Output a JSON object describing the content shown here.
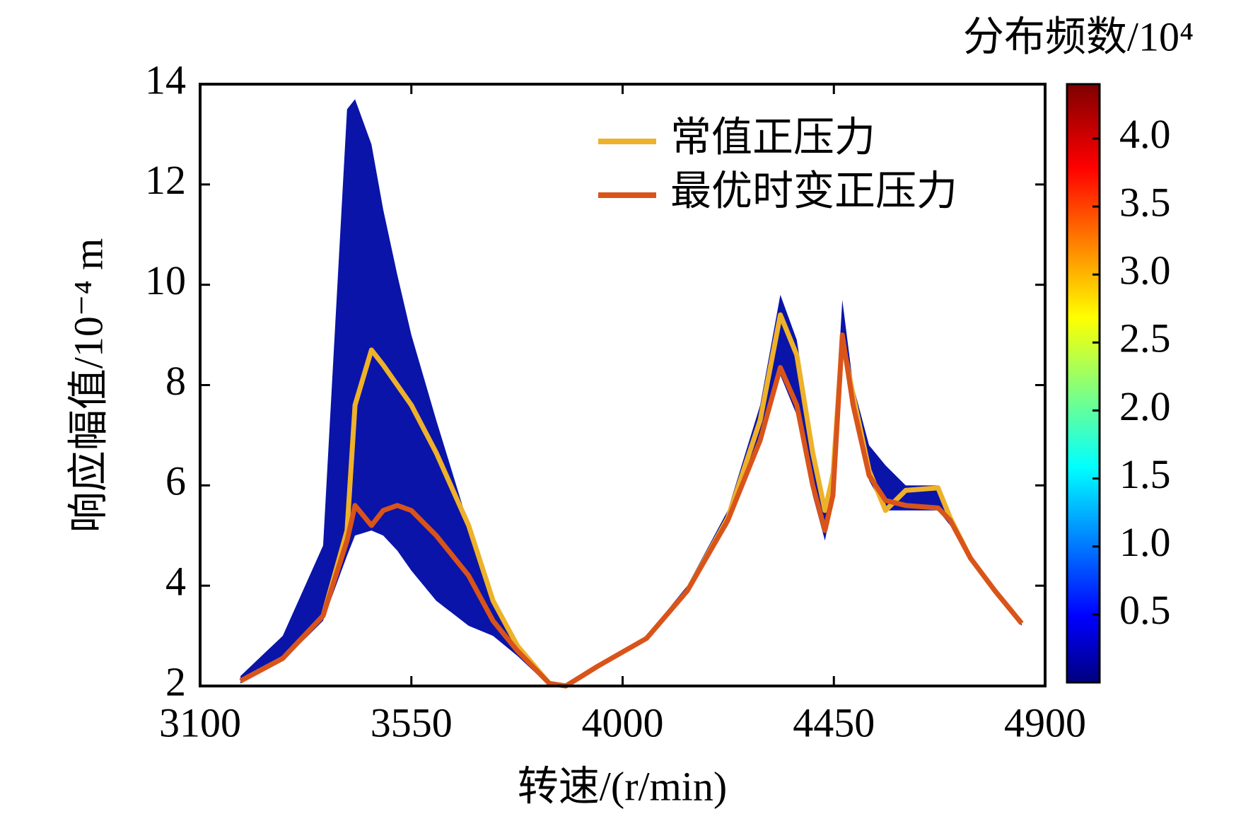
{
  "chart_data": {
    "type": "line",
    "xlabel": "转速/(r/min)",
    "ylabel": "响应幅值/10⁻⁴ m",
    "x": [
      3186,
      3276,
      3362,
      3413,
      3430,
      3465,
      3490,
      3520,
      3550,
      3603,
      3672,
      3724,
      3776,
      3844,
      3879,
      3948,
      4051,
      4138,
      4224,
      4293,
      4336,
      4371,
      4405,
      4431,
      4448,
      4468,
      4491,
      4525,
      4560,
      4603,
      4672,
      4698,
      4741,
      4793,
      4850
    ],
    "series": [
      {
        "name": "常值正压力",
        "color": "#eeb12a",
        "values": [
          2.1,
          2.55,
          3.4,
          5.1,
          7.6,
          8.7,
          8.4,
          8.0,
          7.6,
          6.65,
          5.2,
          3.7,
          2.8,
          2.05,
          2.0,
          2.4,
          2.95,
          3.9,
          5.35,
          7.3,
          9.4,
          8.6,
          6.65,
          5.5,
          6.2,
          8.9,
          7.8,
          6.3,
          5.5,
          5.9,
          5.95,
          5.35,
          4.55,
          3.9,
          3.25
        ]
      },
      {
        "name": "最优时变正压力",
        "color": "#d9541a",
        "values": [
          2.1,
          2.55,
          3.4,
          4.9,
          5.6,
          5.2,
          5.5,
          5.6,
          5.5,
          5.0,
          4.2,
          3.3,
          2.7,
          2.05,
          2.0,
          2.4,
          2.95,
          3.9,
          5.3,
          6.9,
          8.35,
          7.6,
          6.0,
          5.1,
          5.8,
          9.0,
          7.6,
          6.2,
          5.7,
          5.6,
          5.55,
          5.3,
          4.55,
          3.9,
          3.25
        ]
      }
    ],
    "density_envelope": {
      "color": "#0a14a8",
      "upper": [
        2.2,
        3.0,
        4.8,
        13.5,
        13.7,
        12.8,
        11.5,
        10.2,
        9.0,
        7.3,
        5.2,
        3.6,
        2.8,
        2.1,
        2.05,
        2.4,
        3.0,
        4.0,
        5.5,
        7.6,
        9.8,
        8.9,
        6.9,
        5.6,
        6.5,
        9.7,
        8.0,
        6.8,
        6.4,
        6.0,
        6.0,
        5.4,
        4.6,
        3.95,
        3.3
      ],
      "lower": [
        2.05,
        2.5,
        3.3,
        4.6,
        5.0,
        5.1,
        5.0,
        4.7,
        4.3,
        3.7,
        3.2,
        3.0,
        2.6,
        2.0,
        2.0,
        2.35,
        2.9,
        3.85,
        5.2,
        6.8,
        8.2,
        7.4,
        5.8,
        4.9,
        5.7,
        8.8,
        7.4,
        6.1,
        5.5,
        5.5,
        5.5,
        5.2,
        4.5,
        3.85,
        3.2
      ]
    },
    "xlim": [
      3100,
      4900
    ],
    "xticks": [
      3100,
      3550,
      4000,
      4450,
      4900
    ],
    "ylim": [
      2,
      14
    ],
    "yticks": [
      2,
      4,
      6,
      8,
      10,
      12,
      14
    ],
    "legend": "upper-right",
    "colorbar": {
      "title": "分布频数/10⁴",
      "lim": [
        0,
        4.4
      ],
      "ticks": [
        {
          "value": 0.5,
          "label": "0.5"
        },
        {
          "value": 1,
          "label": "1.0"
        },
        {
          "value": 1.5,
          "label": "1.5"
        },
        {
          "value": 2,
          "label": "2.0"
        },
        {
          "value": 2.5,
          "label": "2.5"
        },
        {
          "value": 3,
          "label": "3.0"
        },
        {
          "value": 3.5,
          "label": "3.5"
        },
        {
          "value": 4,
          "label": "4.0"
        }
      ]
    }
  }
}
